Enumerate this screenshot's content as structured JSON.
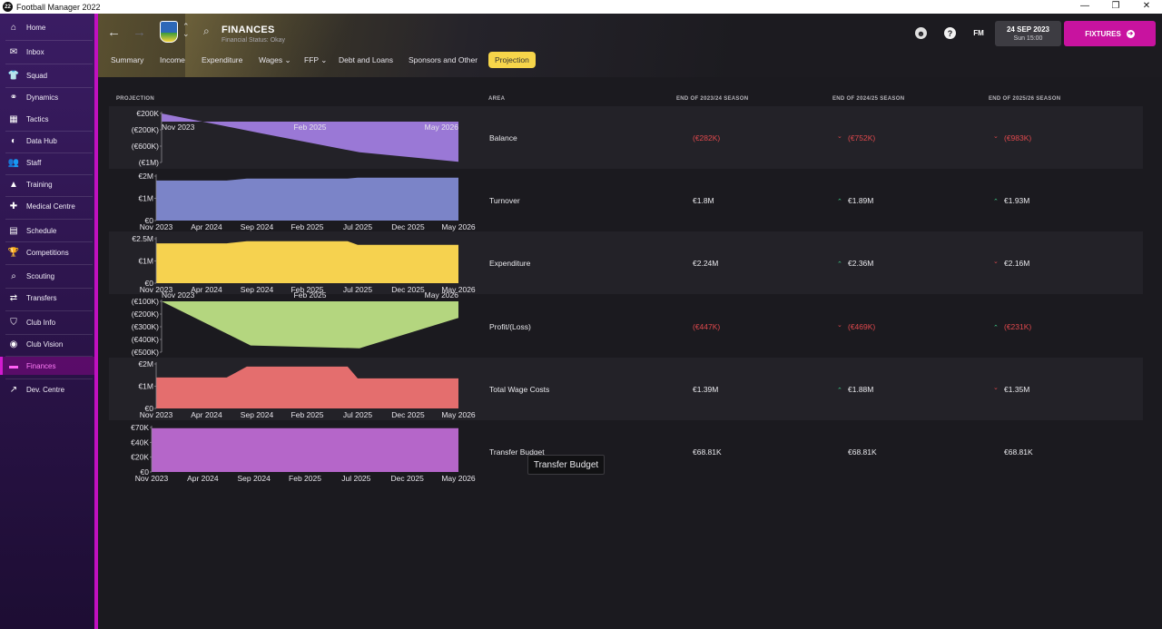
{
  "app": {
    "title": "Football Manager 2022",
    "logo": "22"
  },
  "window_controls": [
    "—",
    "❐",
    "✕"
  ],
  "colors": {
    "accent": "#c8139f",
    "active_tab": "#f6d54a",
    "negative": "#e0494d",
    "positive": "#3fd08a",
    "sidebar": "#2a1348"
  },
  "sidebar": {
    "items": [
      {
        "label": "Home",
        "icon": "home-icon"
      },
      {
        "label": "Inbox",
        "icon": "inbox-icon"
      },
      {
        "label": "Squad",
        "icon": "shirt-icon"
      },
      {
        "label": "Dynamics",
        "icon": "dynamics-icon"
      },
      {
        "label": "Tactics",
        "icon": "tactics-board-icon"
      },
      {
        "label": "Data Hub",
        "icon": "data-hub-icon"
      },
      {
        "label": "Staff",
        "icon": "staff-icon"
      },
      {
        "label": "Training",
        "icon": "training-cone-icon"
      },
      {
        "label": "Medical Centre",
        "icon": "medical-cross-icon"
      },
      {
        "label": "Schedule",
        "icon": "calendar-icon"
      },
      {
        "label": "Competitions",
        "icon": "trophy-icon"
      },
      {
        "label": "Scouting",
        "icon": "magnifier-icon"
      },
      {
        "label": "Transfers",
        "icon": "transfer-arrows-icon"
      },
      {
        "label": "Club Info",
        "icon": "club-shield-icon"
      },
      {
        "label": "Club Vision",
        "icon": "vision-icon"
      },
      {
        "label": "Finances",
        "icon": "finances-icon"
      },
      {
        "label": "Dev. Centre",
        "icon": "dev-centre-icon"
      }
    ],
    "active": "Finances"
  },
  "header": {
    "title": "FINANCES",
    "subtitle": "Financial Status: Okay",
    "help": "?",
    "fm": "FM",
    "date": "24 SEP 2023",
    "time": "Sun 15:00",
    "fixtures_label": "FIXTURES"
  },
  "tabs": [
    {
      "label": "Summary"
    },
    {
      "label": "Income"
    },
    {
      "label": "Expenditure"
    },
    {
      "label": "Wages ⌄"
    },
    {
      "label": "FFP ⌄"
    },
    {
      "label": "Debt and Loans"
    },
    {
      "label": "Sponsors and Other"
    },
    {
      "label": "Projection",
      "active": true
    }
  ],
  "table": {
    "headers": {
      "projection": "PROJECTION",
      "area": "AREA",
      "s1": "END OF 2023/24 SEASON",
      "s2": "END OF 2024/25 SEASON",
      "s3": "END OF 2025/26 SEASON"
    },
    "rows": [
      {
        "area": "Balance",
        "s1": "(€282K)",
        "s1_neg": true,
        "s2": "(€752K)",
        "s2_neg": true,
        "s2_trend": "down",
        "s3": "(€983K)",
        "s3_neg": true,
        "s3_trend": "down"
      },
      {
        "area": "Turnover",
        "s1": "€1.8M",
        "s2": "€1.89M",
        "s2_trend": "up",
        "s3": "€1.93M",
        "s3_trend": "up"
      },
      {
        "area": "Expenditure",
        "s1": "€2.24M",
        "s2": "€2.36M",
        "s2_trend": "up",
        "s3": "€2.16M",
        "s3_trend": "down"
      },
      {
        "area": "Profit/(Loss)",
        "s1": "(€447K)",
        "s1_neg": true,
        "s2": "(€469K)",
        "s2_neg": true,
        "s2_trend": "down",
        "s3": "(€231K)",
        "s3_neg": true,
        "s3_trend": "up"
      },
      {
        "area": "Total Wage Costs",
        "s1": "€1.39M",
        "s2": "€1.88M",
        "s2_trend": "up",
        "s3": "€1.35M",
        "s3_trend": "down"
      },
      {
        "area": "Transfer Budget",
        "s1": "€68.81K",
        "s2": "€68.81K",
        "s3": "€68.81K"
      }
    ]
  },
  "tooltip": "Transfer Budget",
  "chart_data": [
    {
      "type": "area",
      "area": "Balance",
      "x": [
        "Nov 2023",
        "Sep 2024",
        "Jul 2025",
        "May 2026"
      ],
      "y_units": "€K",
      "values": [
        200,
        -282,
        -752,
        -983
      ],
      "ylim": [
        -1000,
        200
      ],
      "yticks": [
        "€200K",
        "(€200K)",
        "(€600K)",
        "(€1M)"
      ],
      "xticks": [
        "Nov 2023",
        "Feb 2025",
        "May 2026"
      ],
      "color": "#9a78d6"
    },
    {
      "type": "area",
      "area": "Turnover",
      "x": [
        "Nov 2023",
        "Jun 2024",
        "Aug 2024",
        "Jun 2025",
        "Jul 2025",
        "May 2026"
      ],
      "y_units": "€M",
      "values": [
        1.8,
        1.8,
        1.89,
        1.89,
        1.93,
        1.93
      ],
      "ylim": [
        0,
        2
      ],
      "yticks": [
        "€2M",
        "€1M",
        "€0"
      ],
      "xticks": [
        "Nov 2023",
        "Apr 2024",
        "Sep 2024",
        "Feb 2025",
        "Jul 2025",
        "Dec 2025",
        "May 2026"
      ],
      "color": "#7b84c8"
    },
    {
      "type": "area",
      "area": "Expenditure",
      "x": [
        "Nov 2023",
        "Jun 2024",
        "Aug 2024",
        "Jun 2025",
        "Jul 2025",
        "May 2026"
      ],
      "y_units": "€M",
      "values": [
        2.24,
        2.24,
        2.36,
        2.36,
        2.16,
        2.16
      ],
      "ylim": [
        0,
        2.5
      ],
      "yticks": [
        "€2.5M",
        "€1M",
        "€0"
      ],
      "xticks": [
        "Nov 2023",
        "Apr 2024",
        "Sep 2024",
        "Feb 2025",
        "Jul 2025",
        "Dec 2025",
        "May 2026"
      ],
      "color": "#f6d24f"
    },
    {
      "type": "area",
      "area": "Profit/(Loss)",
      "x": [
        "Nov 2023",
        "Aug 2024",
        "Jul 2025",
        "May 2026"
      ],
      "y_units": "€K",
      "values": [
        -100,
        -447,
        -469,
        -231
      ],
      "ylim": [
        -500,
        -100
      ],
      "yticks": [
        "(€100K)",
        "(€200K)",
        "(€300K)",
        "(€400K)",
        "(€500K)"
      ],
      "xticks": [
        "Nov 2023",
        "Feb 2025",
        "May 2026"
      ],
      "color": "#b4d67f"
    },
    {
      "type": "area",
      "area": "Total Wage Costs",
      "x": [
        "Nov 2023",
        "Jun 2024",
        "Aug 2024",
        "Jun 2025",
        "Jul 2025",
        "May 2026"
      ],
      "y_units": "€M",
      "values": [
        1.39,
        1.39,
        1.88,
        1.88,
        1.35,
        1.35
      ],
      "ylim": [
        0,
        2
      ],
      "yticks": [
        "€2M",
        "€1M",
        "€0"
      ],
      "xticks": [
        "Nov 2023",
        "Apr 2024",
        "Sep 2024",
        "Feb 2025",
        "Jul 2025",
        "Dec 2025",
        "May 2026"
      ],
      "color": "#e46e6e"
    },
    {
      "type": "area",
      "area": "Transfer Budget",
      "x": [
        "Nov 2023",
        "May 2026"
      ],
      "y_units": "€K",
      "values": [
        68.81,
        68.81
      ],
      "ylim": [
        0,
        70
      ],
      "yticks": [
        "€70K",
        "€40K",
        "€20K",
        "€0"
      ],
      "xticks": [
        "Nov 2023",
        "Apr 2024",
        "Sep 2024",
        "Feb 2025",
        "Jul 2025",
        "Dec 2025",
        "May 2026"
      ],
      "color": "#b566c9"
    }
  ]
}
